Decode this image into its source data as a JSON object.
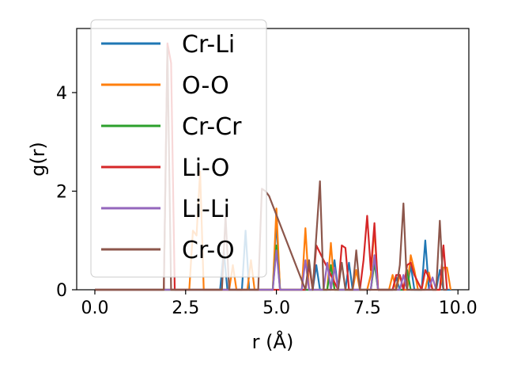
{
  "chart_data": {
    "type": "line",
    "title": "",
    "xlabel": "r (Å)",
    "ylabel": "g(r)",
    "xlim": [
      -0.5,
      10.3
    ],
    "ylim": [
      0,
      5.3
    ],
    "xticks": [
      0.0,
      2.5,
      5.0,
      7.5,
      10.0
    ],
    "xtick_labels": [
      "0.0",
      "2.5",
      "5.0",
      "7.5",
      "10.0"
    ],
    "yticks": [
      0,
      2,
      4
    ],
    "ytick_labels": [
      "0",
      "2",
      "4"
    ],
    "grid": false,
    "legend_position": "upper-left",
    "series": [
      {
        "name": "Cr-Li",
        "color": "#1f77b4",
        "x": [
          0.0,
          3.45,
          3.55,
          3.65,
          4.05,
          4.15,
          4.25,
          4.9,
          5.0,
          5.1,
          6.0,
          6.1,
          6.2,
          6.5,
          6.6,
          6.7,
          6.9,
          7.0,
          7.1,
          7.6,
          7.7,
          7.8,
          8.2,
          8.3,
          8.4,
          8.6,
          8.7,
          8.8,
          9.0,
          9.1,
          9.2,
          9.4,
          9.5,
          9.6,
          9.8
        ],
        "y": [
          0.0,
          0.0,
          0.8,
          0.0,
          0.0,
          1.2,
          0.0,
          0.0,
          1.4,
          0.0,
          0.0,
          0.5,
          0.0,
          0.0,
          0.6,
          0.0,
          0.0,
          0.55,
          0.0,
          0.0,
          0.6,
          0.0,
          0.0,
          0.25,
          0.0,
          0.0,
          0.5,
          0.0,
          0.0,
          1.0,
          0.0,
          0.0,
          0.4,
          0.0,
          0.0
        ]
      },
      {
        "name": "O-O",
        "color": "#ff7f0e",
        "x": [
          0.0,
          2.6,
          2.7,
          2.8,
          2.9,
          3.0,
          3.7,
          3.8,
          3.9,
          4.2,
          4.3,
          4.4,
          4.9,
          5.0,
          5.1,
          5.7,
          5.8,
          5.9,
          6.4,
          6.5,
          6.6,
          7.1,
          7.2,
          7.3,
          7.5,
          7.6,
          7.7,
          7.8,
          8.1,
          8.2,
          8.3,
          8.4,
          8.5,
          8.6,
          8.7,
          8.8,
          8.9,
          9.1,
          9.2,
          9.3,
          9.5,
          9.6,
          9.7,
          9.8
        ],
        "y": [
          0.0,
          0.0,
          1.2,
          1.1,
          2.4,
          0.0,
          0.0,
          0.5,
          0.0,
          0.0,
          0.6,
          0.0,
          0.0,
          1.65,
          0.0,
          0.0,
          1.25,
          0.0,
          0.0,
          0.95,
          0.0,
          0.0,
          0.4,
          0.0,
          0.0,
          0.3,
          1.25,
          0.0,
          0.0,
          0.3,
          0.0,
          0.3,
          0.0,
          0.0,
          0.7,
          0.4,
          0.0,
          0.0,
          0.35,
          0.0,
          0.0,
          0.45,
          0.45,
          0.0
        ]
      },
      {
        "name": "Cr-Cr",
        "color": "#2ca02c",
        "x": [
          0.0,
          4.9,
          5.0,
          5.1,
          6.4,
          6.5,
          6.6,
          7.6,
          7.7,
          7.8,
          8.5,
          8.6,
          8.7,
          9.0
        ],
        "y": [
          0.0,
          0.0,
          0.9,
          0.0,
          0.0,
          0.5,
          0.0,
          0.0,
          0.55,
          0.0,
          0.0,
          0.4,
          0.0,
          0.0
        ]
      },
      {
        "name": "Li-O",
        "color": "#d62728",
        "x": [
          0.0,
          1.9,
          2.0,
          2.1,
          2.2,
          5.8,
          5.9,
          6.0,
          6.1,
          6.7,
          6.8,
          6.9,
          7.0,
          7.3,
          7.4,
          7.5,
          7.6,
          7.7,
          7.8,
          8.2,
          8.3,
          8.4,
          8.5,
          8.6,
          8.7,
          8.8,
          9.0,
          9.1,
          9.2,
          9.3,
          9.5,
          9.6,
          9.7
        ],
        "y": [
          0.0,
          0.0,
          5.0,
          4.6,
          0.0,
          0.0,
          0.5,
          0.0,
          0.9,
          0.0,
          0.9,
          0.85,
          0.0,
          0.0,
          0.6,
          1.5,
          0.4,
          1.35,
          0.0,
          0.0,
          0.3,
          0.3,
          0.0,
          0.5,
          0.55,
          0.3,
          0.0,
          0.4,
          0.25,
          0.0,
          0.0,
          0.9,
          0.0
        ]
      },
      {
        "name": "Li-Li",
        "color": "#9467bd",
        "x": [
          0.0,
          4.9,
          5.0,
          5.1,
          5.7,
          5.8,
          5.9,
          6.3,
          6.4,
          6.5,
          6.6,
          6.7,
          7.6,
          7.7,
          7.8,
          8.4,
          8.5,
          8.6,
          9.2,
          9.3,
          9.4
        ],
        "y": [
          0.0,
          0.0,
          0.8,
          0.0,
          0.0,
          0.6,
          0.0,
          0.0,
          0.55,
          0.0,
          0.45,
          0.0,
          0.0,
          0.7,
          0.0,
          0.0,
          0.3,
          0.0,
          0.0,
          0.25,
          0.0
        ]
      },
      {
        "name": "Cr-O",
        "color": "#8c564b",
        "x": [
          0.0,
          1.9,
          2.0,
          2.1,
          3.5,
          3.6,
          3.7,
          4.5,
          4.6,
          4.7,
          4.8,
          5.8,
          5.9,
          6.0,
          6.1,
          6.2,
          6.3,
          6.7,
          6.8,
          6.9,
          7.1,
          7.2,
          7.3,
          8.3,
          8.4,
          8.5,
          8.6,
          9.4,
          9.5,
          9.6,
          9.7
        ],
        "y": [
          0.0,
          0.0,
          4.9,
          0.0,
          0.0,
          1.5,
          0.0,
          0.0,
          2.05,
          2.0,
          1.9,
          0.0,
          0.6,
          0.0,
          1.1,
          2.2,
          0.0,
          0.0,
          0.55,
          0.0,
          0.0,
          0.8,
          0.0,
          0.0,
          0.5,
          1.75,
          0.0,
          0.0,
          1.4,
          0.0,
          0.0
        ]
      }
    ]
  }
}
